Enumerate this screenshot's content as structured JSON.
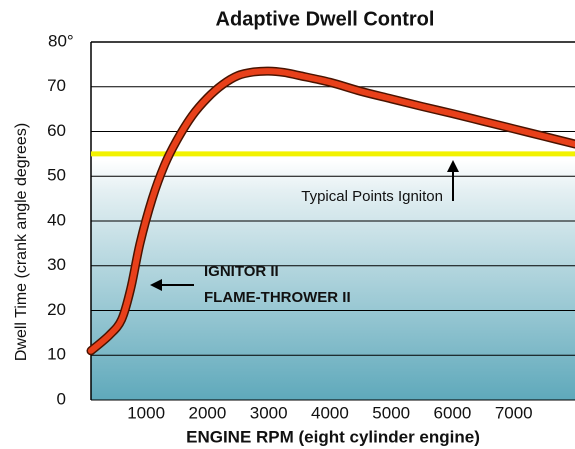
{
  "chart_data": {
    "type": "line",
    "title": "Adaptive Dwell Control",
    "xlabel": "ENGINE RPM (eight cylinder engine)",
    "ylabel": "Dwell Time (crank angle degrees)",
    "x": [
      100,
      400,
      600,
      750,
      900,
      1100,
      1300,
      1500,
      1750,
      2000,
      2250,
      2500,
      2750,
      3000,
      3250,
      3500,
      4000,
      4500,
      5000,
      5500,
      6000,
      6500,
      7000,
      7500,
      8000
    ],
    "series": [
      {
        "color": "#e8401a",
        "values": [
          11,
          14.5,
          18,
          25,
          35,
          45,
          52.5,
          58,
          63.5,
          67.5,
          70.5,
          72.5,
          73.3,
          73.5,
          73.2,
          72.5,
          71,
          69,
          67.3,
          65.6,
          64,
          62.3,
          60.6,
          58.9,
          57.2
        ]
      }
    ],
    "xlim": [
      100,
      8000
    ],
    "ylim": [
      0,
      80
    ],
    "xticks": [
      1000,
      2000,
      3000,
      4000,
      5000,
      6000,
      7000
    ],
    "yticks": [
      0,
      10,
      20,
      30,
      40,
      50,
      60,
      70,
      {
        "value": 80,
        "label": "80°"
      }
    ],
    "grid": true,
    "reference_line": {
      "value": 55,
      "color": "#f2f200",
      "label": "Typical Points Igniton"
    },
    "annotations": [
      "IGNITOR II",
      "FLAME-THROWER II"
    ]
  }
}
